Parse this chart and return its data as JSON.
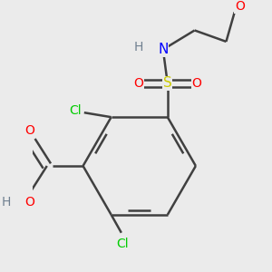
{
  "bg_color": "#ebebeb",
  "atom_colors": {
    "C": "#404040",
    "H": "#708090",
    "N": "#0000ff",
    "O": "#ff0000",
    "S": "#cccc00",
    "Cl": "#00cc00"
  },
  "bond_color": "#404040",
  "bond_width": 1.8
}
